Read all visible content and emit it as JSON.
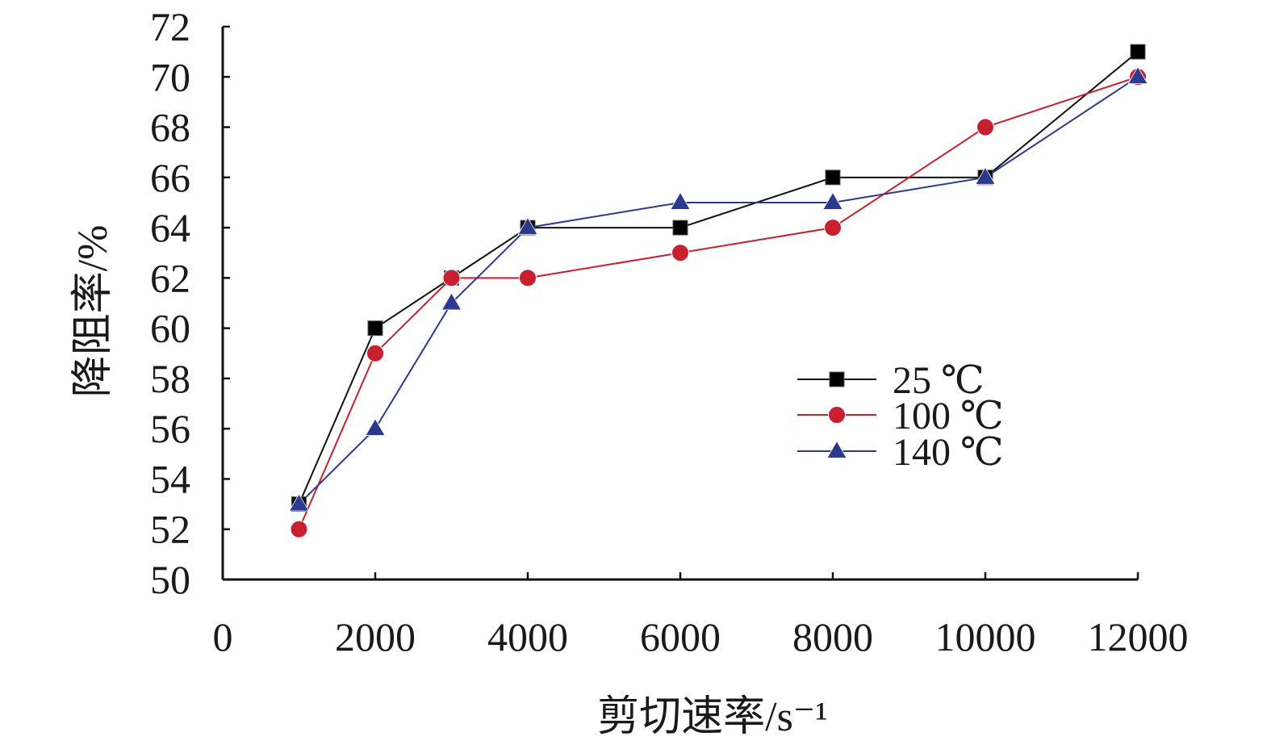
{
  "chart_data": {
    "type": "line",
    "title": "",
    "xlabel": "剪切速率/s⁻¹",
    "ylabel": "降阻率/%",
    "xlim": [
      0,
      12000
    ],
    "ylim": [
      50,
      72
    ],
    "xticks": [
      0,
      2000,
      4000,
      6000,
      8000,
      10000,
      12000
    ],
    "xtick_labels": [
      "0",
      "2000",
      "4000",
      "6000",
      "8000",
      "10000",
      "12000"
    ],
    "yticks": [
      50,
      52,
      54,
      56,
      58,
      60,
      62,
      64,
      66,
      68,
      70,
      72
    ],
    "ytick_labels": [
      "50",
      "52",
      "54",
      "56",
      "58",
      "60",
      "62",
      "64",
      "66",
      "68",
      "70",
      "72"
    ],
    "grid": false,
    "legend_position": "right",
    "x": [
      1000,
      2000,
      3000,
      4000,
      6000,
      8000,
      10000,
      12000
    ],
    "series": [
      {
        "name": "25 ℃",
        "values": [
          53,
          60,
          62,
          64,
          64,
          66,
          66,
          71
        ],
        "color": "#111111",
        "marker": "square"
      },
      {
        "name": "100 ℃",
        "values": [
          52,
          59,
          62,
          62,
          63,
          64,
          68,
          70
        ],
        "color": "#c8202e",
        "marker": "circle"
      },
      {
        "name": "140 ℃",
        "values": [
          53,
          56,
          61,
          64,
          65,
          65,
          66,
          70
        ],
        "color": "#2b3a8f",
        "marker": "triangle"
      }
    ]
  }
}
